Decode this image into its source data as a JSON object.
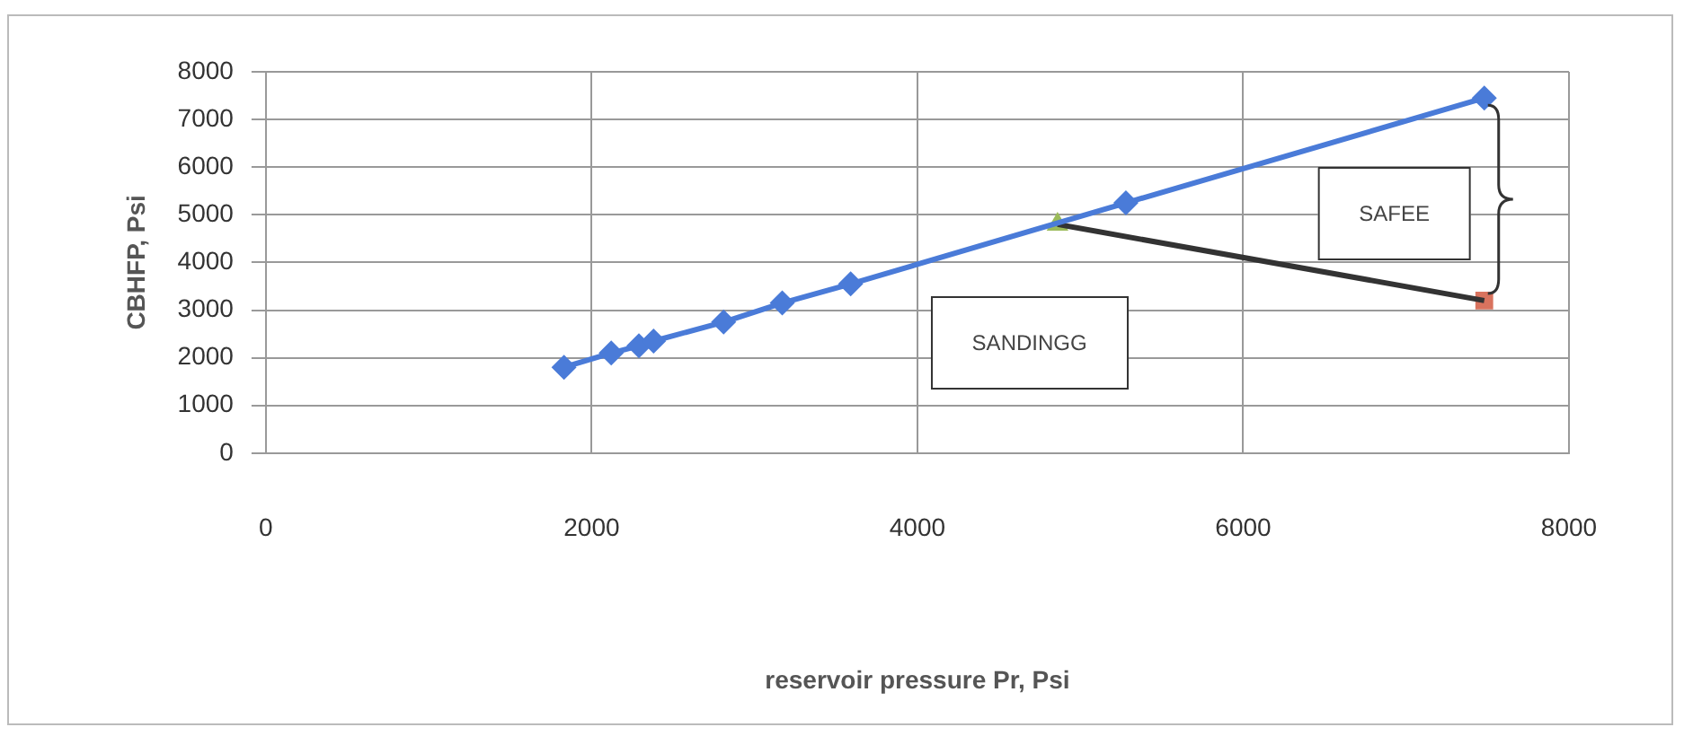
{
  "chart_data": {
    "type": "scatter",
    "xlabel": "reservoir pressure Pr, Psi",
    "ylabel": "CBHFP, Psi",
    "xlim": [
      0,
      8000
    ],
    "xticks": [
      0,
      2000,
      4000,
      6000,
      8000
    ],
    "ylim": [
      0,
      8000
    ],
    "yticks": [
      0,
      1000,
      2000,
      3000,
      4000,
      5000,
      6000,
      7000,
      8000
    ],
    "grid": true,
    "legend": false,
    "series": [
      {
        "type": "line",
        "color": "#4a7bd8",
        "marker": "diamond",
        "x": [
          1830,
          2120,
          2290,
          2380,
          2810,
          3170,
          3590,
          5280,
          7480
        ],
        "values": [
          1800,
          2100,
          2250,
          2350,
          2750,
          3150,
          3550,
          5250,
          7450
        ]
      },
      {
        "type": "line",
        "color": "#333333",
        "marker": "none",
        "x": [
          4860,
          7480
        ],
        "values": [
          4800,
          3200
        ]
      },
      {
        "type": "scatter",
        "color": "#9bbb59",
        "marker": "triangle",
        "x": [
          4860
        ],
        "values": [
          4800
        ]
      },
      {
        "type": "scatter",
        "color": "#d9735e",
        "marker": "square",
        "x": [
          7480
        ],
        "values": [
          3200
        ]
      }
    ],
    "annotations": [
      "SAFEE",
      "SANDINGG"
    ]
  }
}
